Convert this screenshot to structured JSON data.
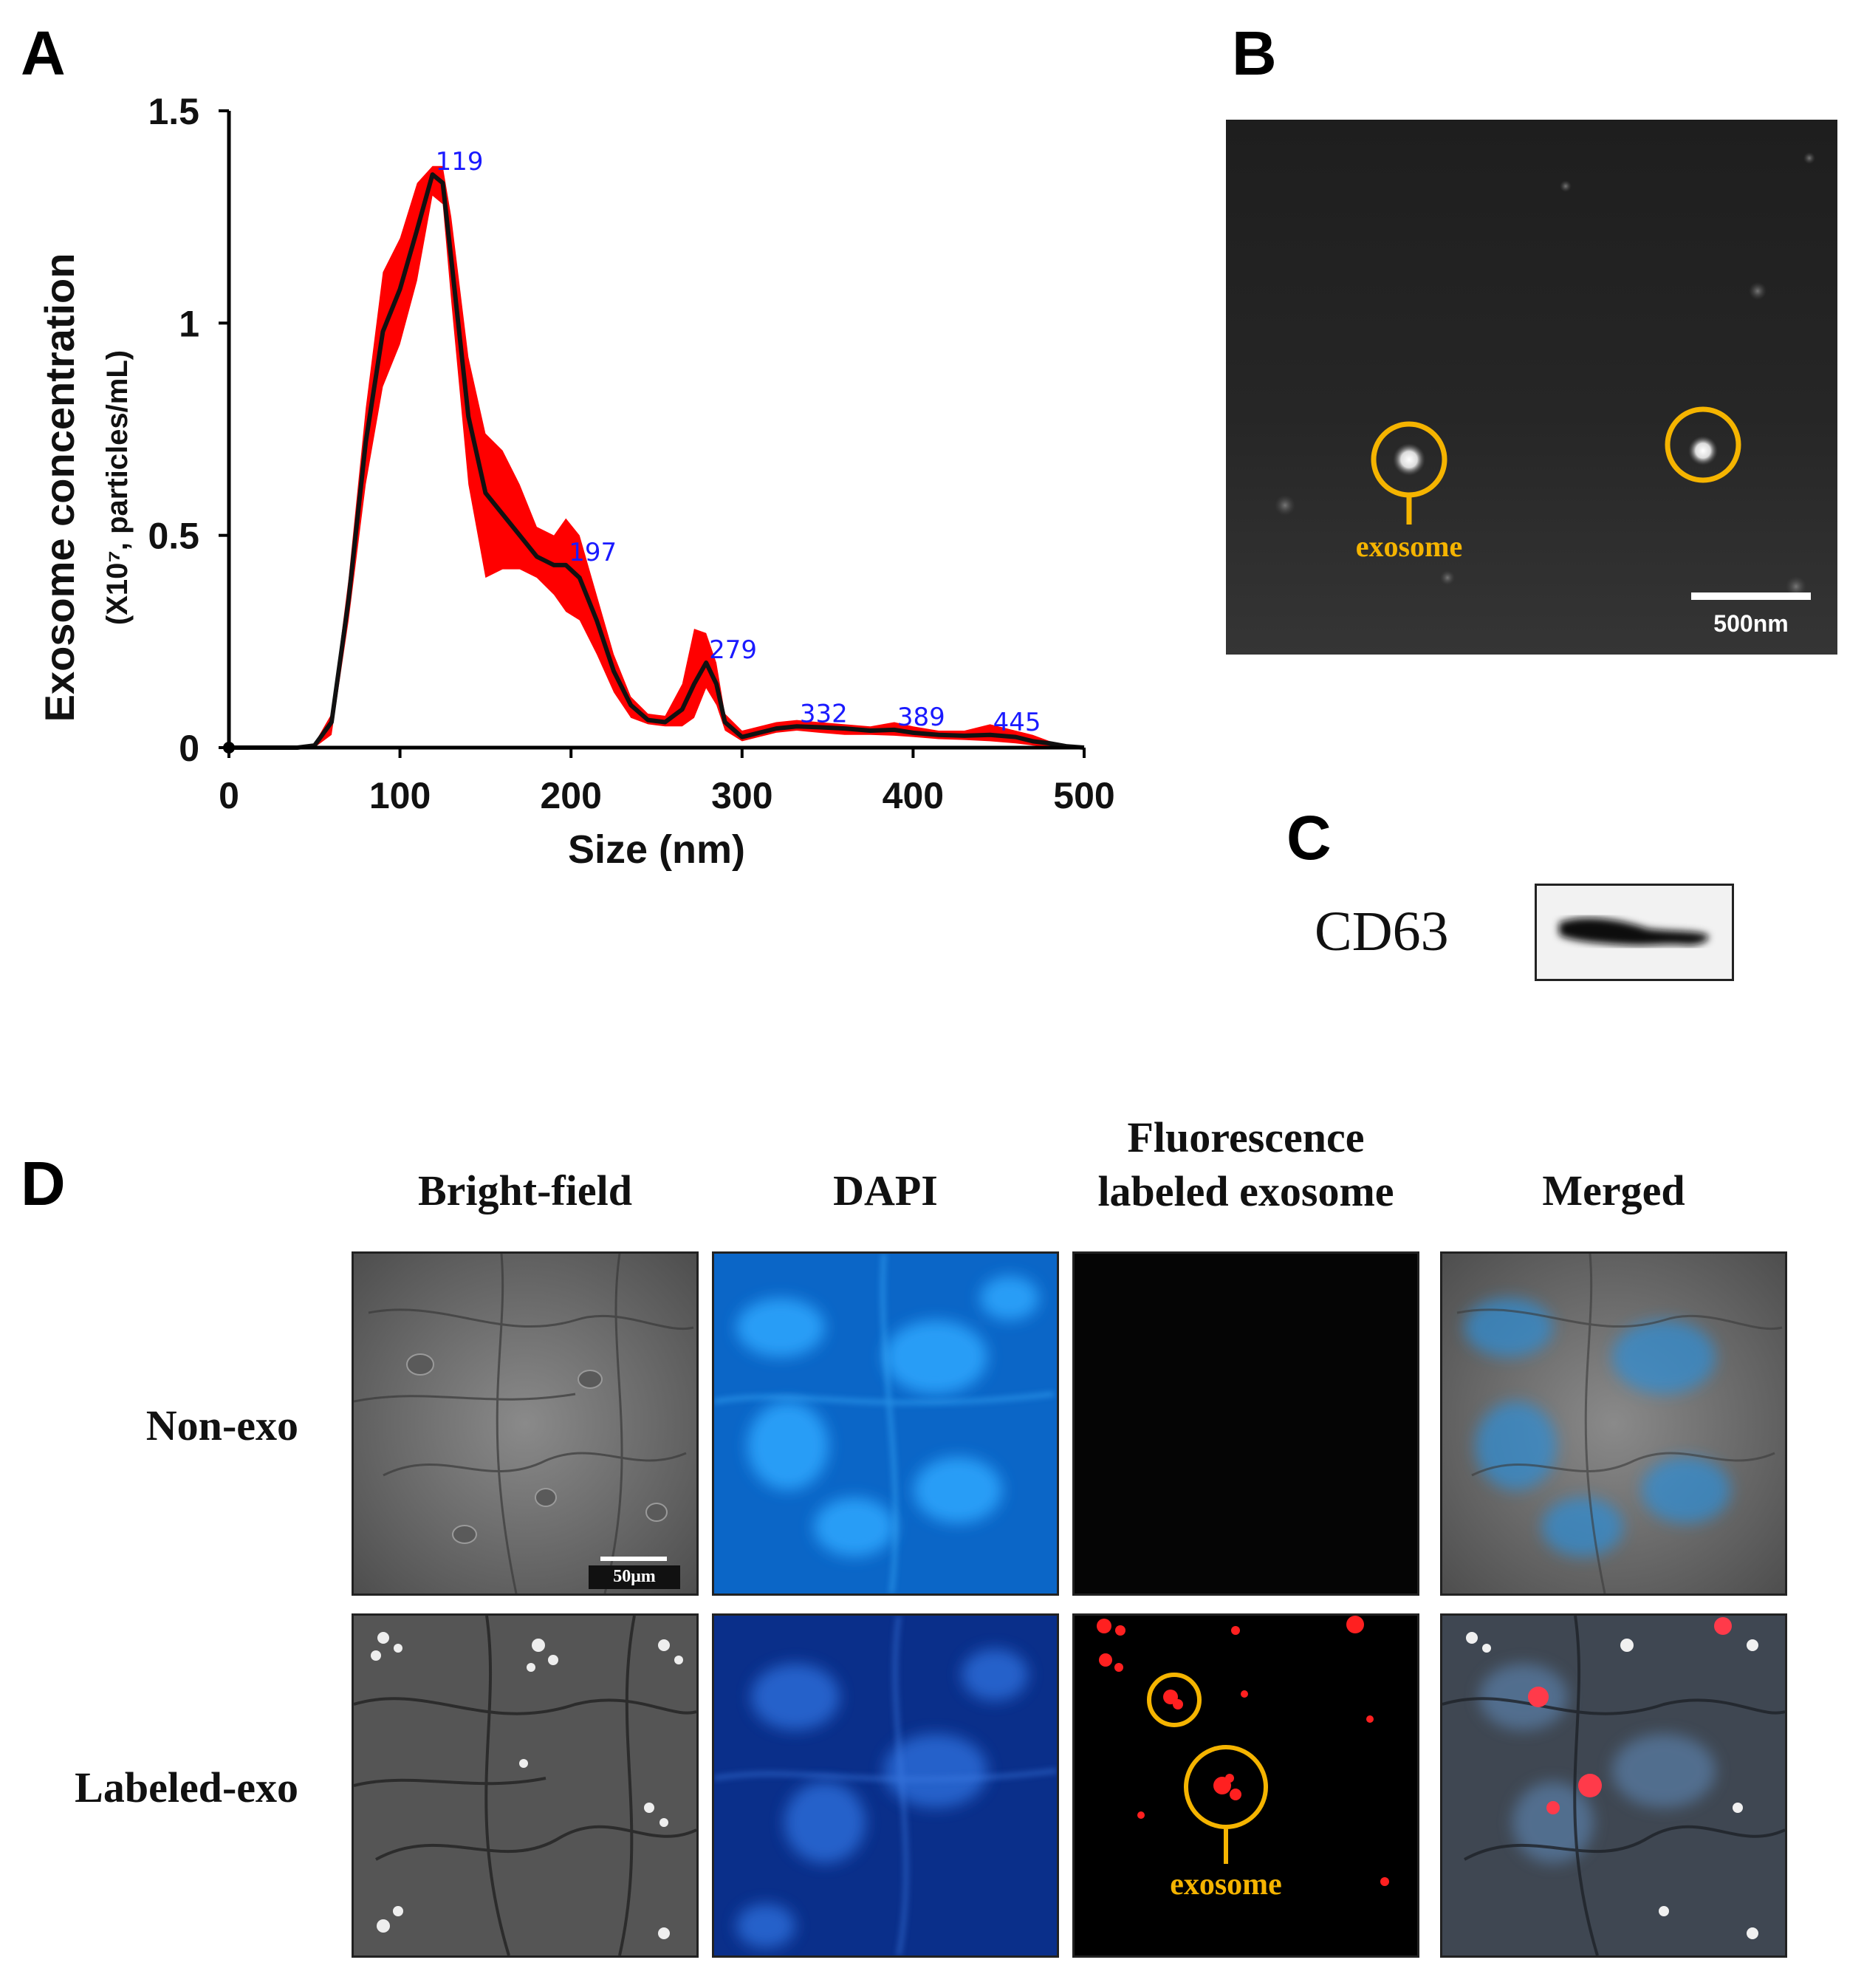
{
  "panels": {
    "a": {
      "letter": "A"
    },
    "b": {
      "letter": "B",
      "annotation": "exosome",
      "scale_bar": "500nm"
    },
    "c": {
      "letter": "C",
      "label": "CD63"
    },
    "d": {
      "letter": "D",
      "columns": [
        "Bright-field",
        "DAPI",
        "Fluorescence\nlabeled exosome",
        "Merged"
      ],
      "rows": [
        "Non-exo",
        "Labeled-exo"
      ],
      "scale_bar": "50μm",
      "annotation": "exosome"
    }
  },
  "colors": {
    "band": "#ff0000",
    "mean_line": "#111111",
    "peak_label": "#1a1aff",
    "annotation": "#f5b400"
  },
  "chart_data": {
    "type": "area",
    "xlabel": "Size (nm)",
    "ylabel": "Exosome concentration",
    "ylabel_sub": "(X10⁷, particles/mL)",
    "xlim": [
      0,
      500
    ],
    "ylim": [
      0,
      1.5
    ],
    "xticks": [
      "0",
      "100",
      "200",
      "300",
      "400",
      "500"
    ],
    "yticks": [
      "0",
      "0.5",
      "1",
      "1.5"
    ],
    "grid": false,
    "series": [
      {
        "role": "mean",
        "x": [
          0,
          40,
          50,
          60,
          70,
          80,
          90,
          100,
          110,
          119,
          125,
          130,
          140,
          150,
          160,
          170,
          180,
          190,
          197,
          205,
          215,
          225,
          235,
          245,
          255,
          265,
          272,
          279,
          285,
          290,
          300,
          310,
          320,
          332,
          345,
          360,
          375,
          389,
          400,
          415,
          430,
          445,
          460,
          470,
          480,
          490,
          500
        ],
        "y": [
          0,
          0,
          0.005,
          0.06,
          0.35,
          0.72,
          0.98,
          1.08,
          1.22,
          1.35,
          1.33,
          1.15,
          0.78,
          0.6,
          0.55,
          0.5,
          0.45,
          0.43,
          0.43,
          0.4,
          0.3,
          0.18,
          0.1,
          0.065,
          0.06,
          0.09,
          0.15,
          0.2,
          0.15,
          0.06,
          0.025,
          0.035,
          0.045,
          0.05,
          0.048,
          0.045,
          0.04,
          0.042,
          0.035,
          0.03,
          0.028,
          0.03,
          0.025,
          0.015,
          0.01,
          0.003,
          0
        ]
      },
      {
        "role": "error-band",
        "x": [
          0,
          40,
          50,
          60,
          70,
          80,
          90,
          95,
          100,
          110,
          119,
          125,
          130,
          140,
          150,
          160,
          170,
          180,
          190,
          197,
          205,
          215,
          225,
          235,
          245,
          255,
          265,
          272,
          279,
          285,
          290,
          300,
          310,
          320,
          332,
          345,
          360,
          375,
          389,
          400,
          415,
          430,
          445,
          460,
          470,
          480,
          490,
          500
        ],
        "upper": [
          0,
          0,
          0.01,
          0.08,
          0.4,
          0.8,
          1.12,
          1.16,
          1.2,
          1.33,
          1.37,
          1.37,
          1.25,
          0.92,
          0.74,
          0.7,
          0.62,
          0.52,
          0.5,
          0.54,
          0.5,
          0.36,
          0.22,
          0.12,
          0.08,
          0.075,
          0.15,
          0.28,
          0.27,
          0.2,
          0.08,
          0.04,
          0.05,
          0.06,
          0.065,
          0.06,
          0.055,
          0.05,
          0.06,
          0.05,
          0.04,
          0.04,
          0.055,
          0.04,
          0.03,
          0.015,
          0.005,
          0
        ],
        "lower": [
          0,
          0,
          0,
          0.03,
          0.3,
          0.62,
          0.85,
          0.9,
          0.95,
          1.1,
          1.3,
          1.28,
          1.05,
          0.62,
          0.4,
          0.42,
          0.42,
          0.4,
          0.36,
          0.32,
          0.3,
          0.22,
          0.13,
          0.07,
          0.055,
          0.05,
          0.05,
          0.07,
          0.14,
          0.1,
          0.04,
          0.015,
          0.025,
          0.035,
          0.04,
          0.035,
          0.03,
          0.03,
          0.028,
          0.025,
          0.02,
          0.018,
          0.015,
          0.01,
          0.005,
          0.002,
          0,
          0
        ]
      }
    ],
    "annotations": [
      {
        "text": "119",
        "x": 119,
        "y": 1.35
      },
      {
        "text": "197",
        "x": 197,
        "y": 0.43
      },
      {
        "text": "279",
        "x": 279,
        "y": 0.2
      },
      {
        "text": "332",
        "x": 332,
        "y": 0.05
      },
      {
        "text": "389",
        "x": 389,
        "y": 0.042
      },
      {
        "text": "445",
        "x": 445,
        "y": 0.03
      }
    ]
  }
}
